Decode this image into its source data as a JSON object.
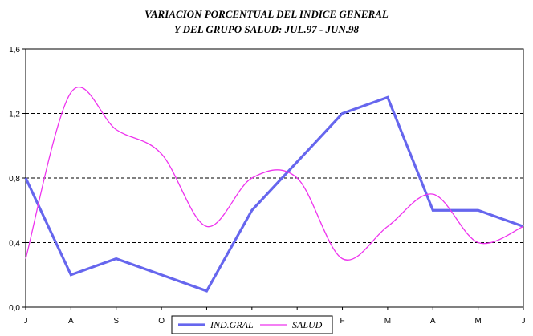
{
  "chart_data": {
    "type": "line",
    "title_lines": [
      "VARIACION PORCENTUAL DEL INDICE GENERAL",
      "Y DEL GRUPO SALUD: JUL.97 - JUN.98"
    ],
    "categories": [
      "J",
      "A",
      "S",
      "O",
      "N",
      "D",
      "E",
      "F",
      "M",
      "A",
      "M",
      "J"
    ],
    "y_ticks": [
      "0,0",
      "0,4",
      "0,8",
      "1,2",
      "1,6"
    ],
    "ylim": [
      0,
      1.6
    ],
    "gridlines": [
      0.4,
      0.8,
      1.2
    ],
    "series": [
      {
        "name": "IND.GRAL",
        "color": "#6666ee",
        "smooth": false,
        "values": [
          0.8,
          0.2,
          0.3,
          0.2,
          0.1,
          0.6,
          0.9,
          1.2,
          1.3,
          0.6,
          0.6,
          0.5
        ]
      },
      {
        "name": "SALUD",
        "color": "#ee33ee",
        "smooth": true,
        "values": [
          0.3,
          1.33,
          1.1,
          0.95,
          0.5,
          0.8,
          0.8,
          0.3,
          0.5,
          0.7,
          0.4,
          0.5
        ]
      }
    ],
    "legend_position": "bottom"
  }
}
